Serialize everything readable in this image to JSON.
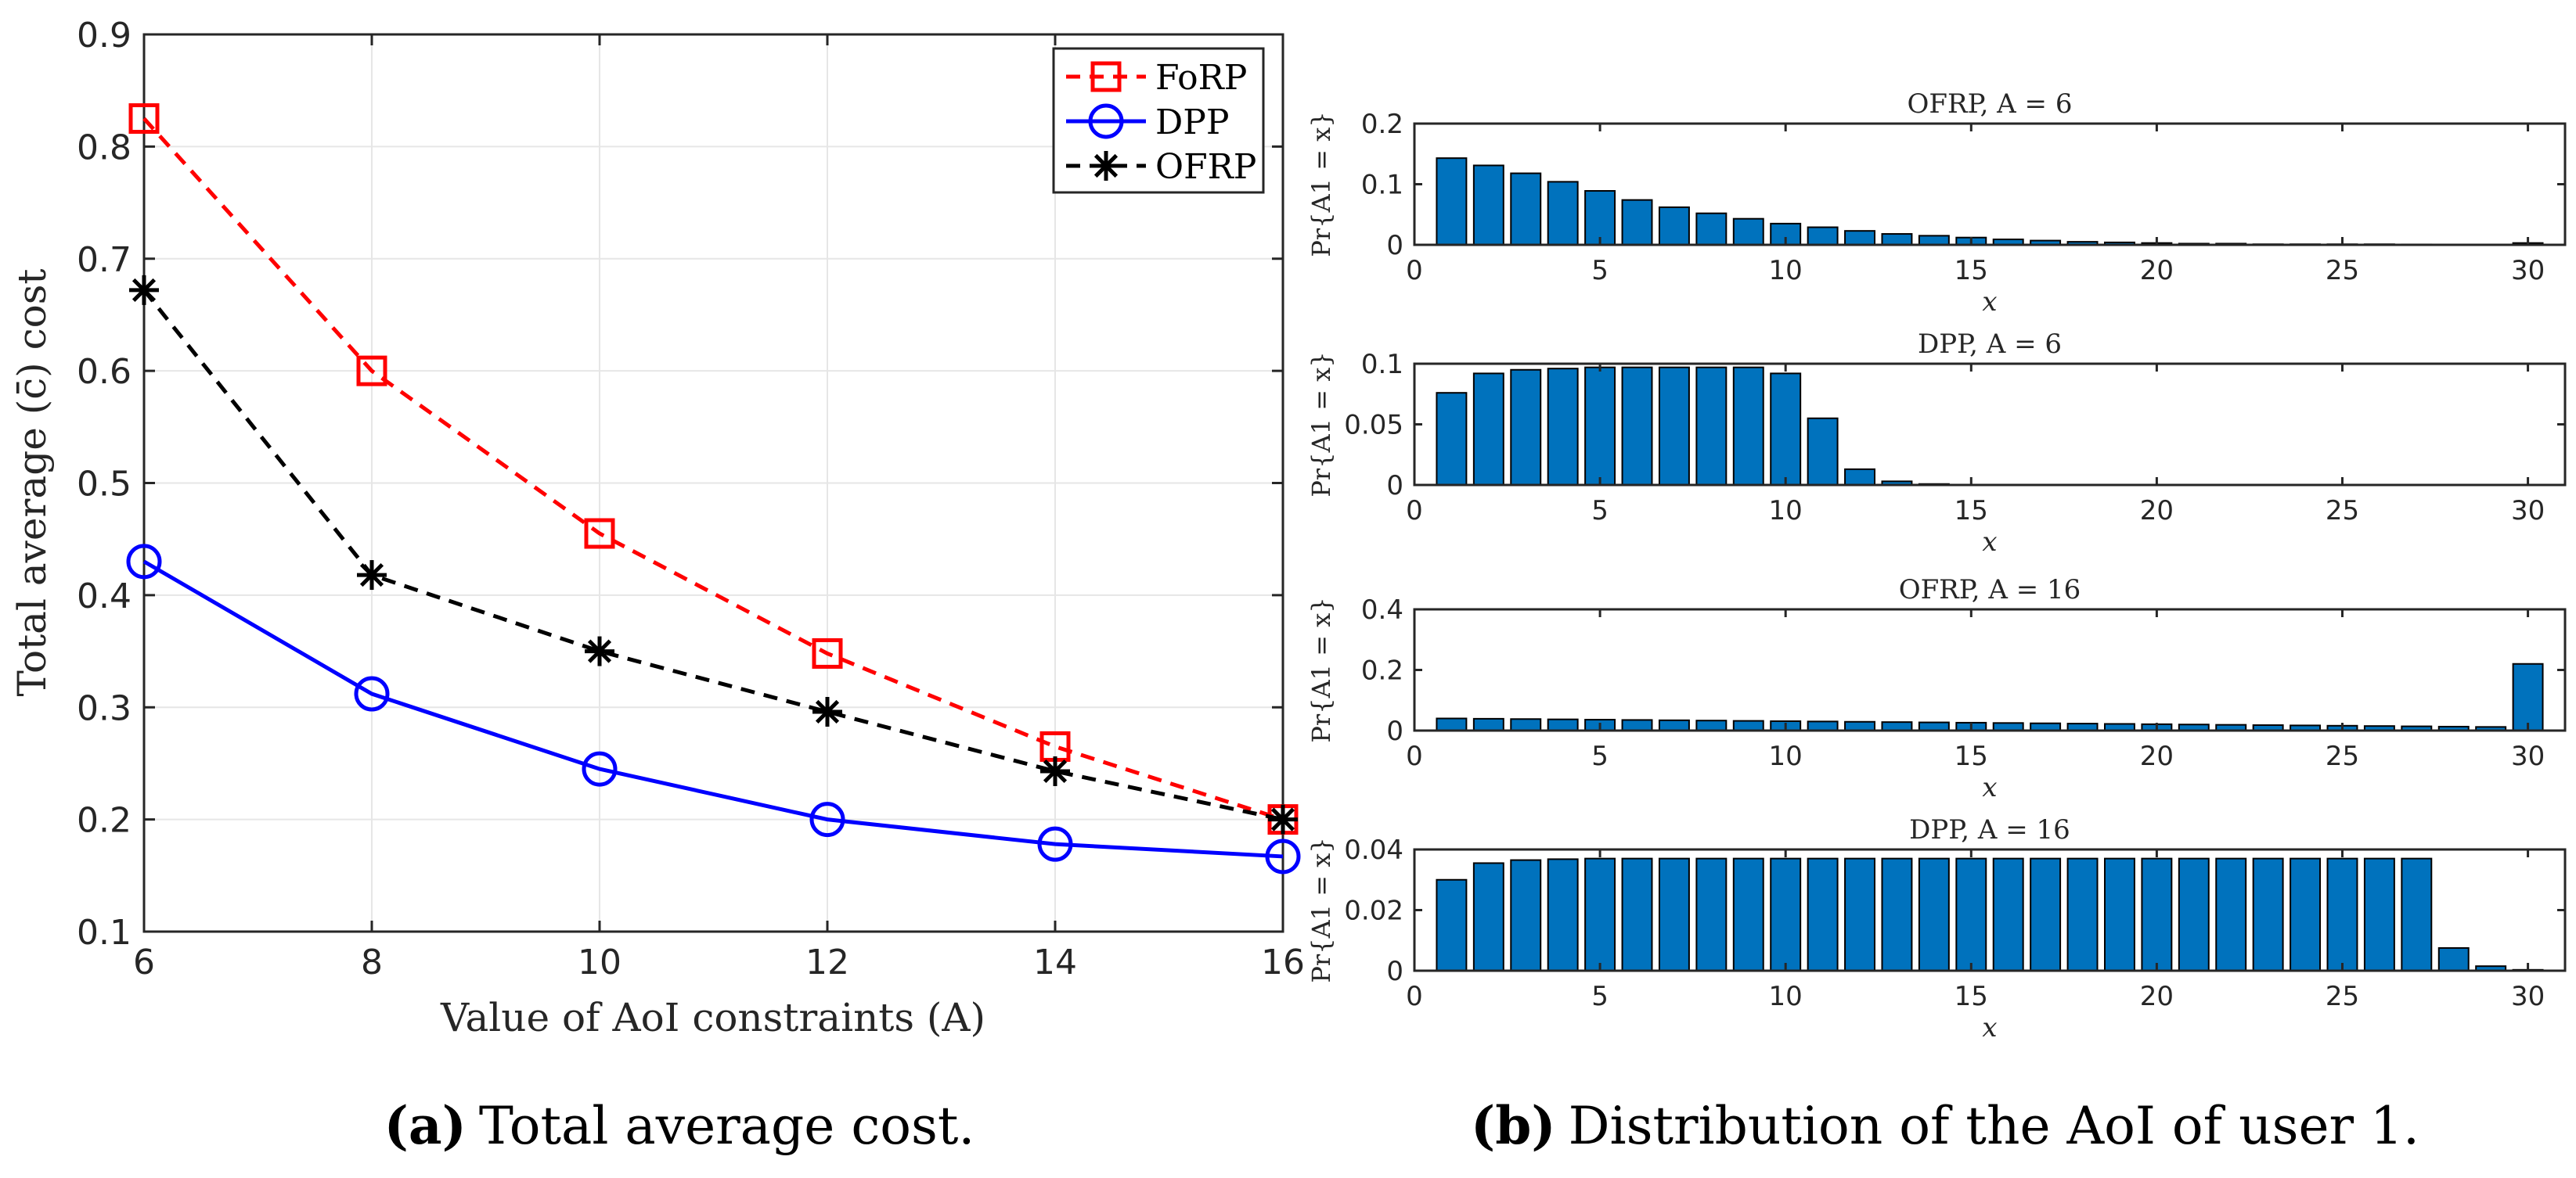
{
  "colors": {
    "forp": "#ff0000",
    "dpp": "#0000ff",
    "ofrp": "#000000",
    "bar": "#0072bd",
    "bar_edge": "#000000"
  },
  "captions": {
    "a_label": "(a)",
    "a_text": "Total average cost.",
    "b_label": "(b)",
    "b_text": "Distribution of the AoI of user 1."
  },
  "chart_data": [
    {
      "id": "a",
      "type": "line",
      "title": "",
      "xlabel": "Value of AoI constraints (A)",
      "ylabel": "Total average (c̄) cost",
      "x": [
        6,
        8,
        10,
        12,
        14,
        16
      ],
      "xlim": [
        6,
        16
      ],
      "ylim": [
        0.1,
        0.9
      ],
      "xticks": [
        "6",
        "8",
        "10",
        "12",
        "14",
        "16"
      ],
      "yticks": [
        "0.1",
        "0.2",
        "0.3",
        "0.4",
        "0.5",
        "0.6",
        "0.7",
        "0.8",
        "0.9"
      ],
      "grid": true,
      "legend_position": "top-right",
      "series": [
        {
          "name": "FoRP",
          "color": "#ff0000",
          "marker": "square",
          "dash": "dashed",
          "values": [
            0.825,
            0.6,
            0.455,
            0.348,
            0.265,
            0.2
          ]
        },
        {
          "name": "DPP",
          "color": "#0000ff",
          "marker": "circle",
          "dash": "solid",
          "values": [
            0.43,
            0.312,
            0.245,
            0.2,
            0.178,
            0.167
          ]
        },
        {
          "name": "OFRP",
          "color": "#000000",
          "marker": "asterisk",
          "dash": "dashed",
          "values": [
            0.672,
            0.418,
            0.35,
            0.296,
            0.243,
            0.2
          ]
        }
      ]
    },
    {
      "id": "b1",
      "type": "bar",
      "title": "OFRP, A = 6",
      "xlabel": "x",
      "ylabel": "Pr{A1 = x}",
      "categories": [
        1,
        2,
        3,
        4,
        5,
        6,
        7,
        8,
        9,
        10,
        11,
        12,
        13,
        14,
        15,
        16,
        17,
        18,
        19,
        20,
        21,
        22,
        23,
        24,
        25,
        26,
        27,
        28,
        29,
        30
      ],
      "values": [
        0.143,
        0.131,
        0.118,
        0.104,
        0.089,
        0.074,
        0.062,
        0.052,
        0.043,
        0.035,
        0.029,
        0.023,
        0.018,
        0.015,
        0.012,
        0.009,
        0.007,
        0.005,
        0.004,
        0.003,
        0.002,
        0.002,
        0.001,
        0.001,
        0.001,
        0.001,
        0.0007,
        0.0005,
        0.0004,
        0.003
      ],
      "xlim": [
        0,
        31
      ],
      "ylim": [
        0,
        0.2
      ],
      "xticks": [
        "0",
        "5",
        "10",
        "15",
        "20",
        "25",
        "30"
      ],
      "yticks": [
        "0",
        "0.1",
        "0.2"
      ]
    },
    {
      "id": "b2",
      "type": "bar",
      "title": "DPP, A = 6",
      "xlabel": "x",
      "ylabel": "Pr{A1 = x}",
      "categories": [
        1,
        2,
        3,
        4,
        5,
        6,
        7,
        8,
        9,
        10,
        11,
        12,
        13,
        14,
        15,
        16,
        17,
        18,
        19,
        20,
        21,
        22,
        23,
        24,
        25,
        26,
        27,
        28,
        29,
        30
      ],
      "values": [
        0.076,
        0.092,
        0.095,
        0.096,
        0.097,
        0.097,
        0.097,
        0.097,
        0.097,
        0.092,
        0.055,
        0.013,
        0.003,
        0.0008,
        0.0002,
        0,
        0,
        0,
        0,
        0,
        0,
        0,
        0,
        0,
        0,
        0,
        0,
        0,
        0,
        0
      ],
      "xlim": [
        0,
        31
      ],
      "ylim": [
        0,
        0.1
      ],
      "xticks": [
        "0",
        "5",
        "10",
        "15",
        "20",
        "25",
        "30"
      ],
      "yticks": [
        "0",
        "0.05",
        "0.1"
      ]
    },
    {
      "id": "b3",
      "type": "bar",
      "title": "OFRP, A = 16",
      "xlabel": "x",
      "ylabel": "Pr{A1 = x}",
      "categories": [
        1,
        2,
        3,
        4,
        5,
        6,
        7,
        8,
        9,
        10,
        11,
        12,
        13,
        14,
        15,
        16,
        17,
        18,
        19,
        20,
        21,
        22,
        23,
        24,
        25,
        26,
        27,
        28,
        29,
        30
      ],
      "values": [
        0.04,
        0.039,
        0.038,
        0.037,
        0.036,
        0.035,
        0.034,
        0.033,
        0.032,
        0.031,
        0.03,
        0.029,
        0.028,
        0.027,
        0.026,
        0.025,
        0.024,
        0.023,
        0.022,
        0.021,
        0.02,
        0.019,
        0.018,
        0.017,
        0.016,
        0.015,
        0.014,
        0.013,
        0.012,
        0.22
      ],
      "xlim": [
        0,
        31
      ],
      "ylim": [
        0,
        0.4
      ],
      "xticks": [
        "0",
        "5",
        "10",
        "15",
        "20",
        "25",
        "30"
      ],
      "yticks": [
        "0",
        "0.2",
        "0.4"
      ]
    },
    {
      "id": "b4",
      "type": "bar",
      "title": "DPP, A = 16",
      "xlabel": "x",
      "ylabel": "Pr{A1 = x}",
      "categories": [
        1,
        2,
        3,
        4,
        5,
        6,
        7,
        8,
        9,
        10,
        11,
        12,
        13,
        14,
        15,
        16,
        17,
        18,
        19,
        20,
        21,
        22,
        23,
        24,
        25,
        26,
        27,
        28,
        29,
        30
      ],
      "values": [
        0.03,
        0.0355,
        0.0365,
        0.0368,
        0.037,
        0.037,
        0.037,
        0.037,
        0.037,
        0.037,
        0.037,
        0.037,
        0.037,
        0.037,
        0.037,
        0.037,
        0.037,
        0.037,
        0.037,
        0.037,
        0.037,
        0.037,
        0.037,
        0.037,
        0.037,
        0.037,
        0.037,
        0.0075,
        0.0015,
        0.0003
      ],
      "xlim": [
        0,
        31
      ],
      "ylim": [
        0,
        0.04
      ],
      "xticks": [
        "0",
        "5",
        "10",
        "15",
        "20",
        "25",
        "30"
      ],
      "yticks": [
        "0",
        "0.02",
        "0.04"
      ]
    }
  ]
}
